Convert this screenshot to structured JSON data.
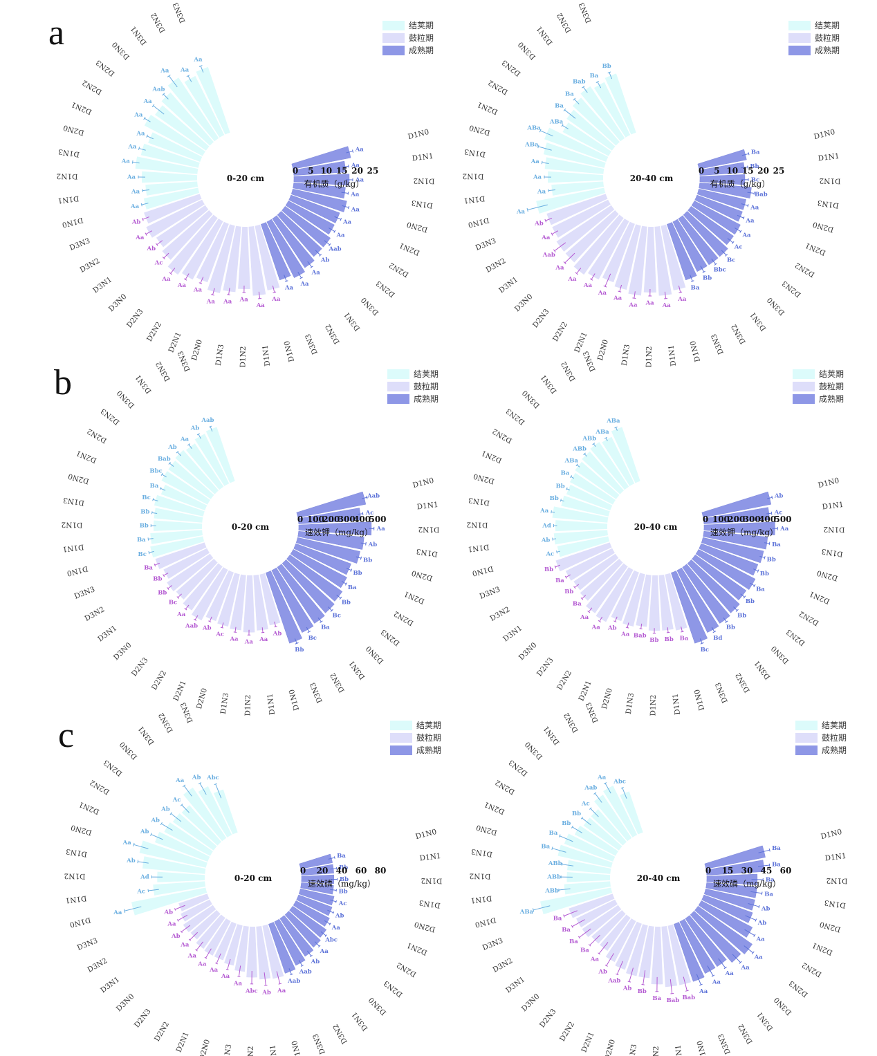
{
  "legend": [
    {
      "name": "结荚期",
      "color": "#dcfbfb"
    },
    {
      "name": "鼓粒期",
      "color": "#dedefa"
    },
    {
      "name": "成熟期",
      "color": "#8e97e6"
    }
  ],
  "stage_label_colors": [
    "#6aaee0",
    "#b45ad2",
    "#5c72d8"
  ],
  "panel_labels": [
    "a",
    "b",
    "c"
  ],
  "categories": [
    "D1N0",
    "D1N1",
    "D1N2",
    "D1N3",
    "D2N0",
    "D2N1",
    "D2N2",
    "D2N3",
    "D3N0",
    "D3N1",
    "D3N2",
    "D3N3"
  ],
  "chart_data": [
    {
      "type": "radial-bar",
      "panel": "a",
      "center_label": "0-20 cm",
      "ticks": [
        "0",
        "5",
        "10",
        "15",
        "20",
        "25"
      ],
      "axis_title": "有机质（g/kg）",
      "ylim": [
        0,
        25
      ],
      "series": [
        {
          "name": "结荚期",
          "values": [
            16,
            15,
            16,
            18,
            17,
            16,
            19,
            18,
            19,
            21,
            19,
            20
          ],
          "errors": [
            1,
            1,
            1,
            1,
            1,
            1,
            1,
            2,
            1,
            2,
            1,
            1
          ],
          "labels": [
            "Aa",
            "Aa",
            "Aa",
            "Aa",
            "Aa",
            "Aa",
            "Aa",
            "Aa",
            "Aab",
            "Aa",
            "Aa",
            "Aa"
          ]
        },
        {
          "name": "鼓粒期",
          "values": [
            19,
            20,
            18,
            19,
            20,
            18,
            19,
            20,
            18,
            17,
            18,
            17
          ],
          "errors": [
            1,
            1,
            1,
            1,
            1,
            1,
            1,
            1,
            1,
            1,
            1,
            1
          ],
          "labels": [
            "Aa",
            "Aa",
            "Aa",
            "Aa",
            "Aa",
            "Aa",
            "Aa",
            "Aa",
            "Ac",
            "Ab",
            "Aa",
            "Ab"
          ]
        },
        {
          "name": "成熟期",
          "values": [
            17,
            15,
            16,
            15,
            16,
            15,
            15,
            16,
            16,
            17,
            18,
            17
          ],
          "errors": [
            1,
            1,
            1,
            1,
            1,
            1,
            1,
            1,
            1,
            1,
            1,
            1
          ],
          "labels": [
            "Aa",
            "Aa",
            "Aa",
            "Aa",
            "Aa",
            "Aa",
            "Aa",
            "Aab",
            "Ab",
            "Aa",
            "Aa",
            "Aa"
          ]
        }
      ]
    },
    {
      "type": "radial-bar",
      "panel": "a",
      "center_label": "20-40 cm",
      "ticks": [
        "0",
        "5",
        "10",
        "15",
        "20",
        "25"
      ],
      "axis_title": "有机质（g/kg）",
      "ylim": [
        0,
        25
      ],
      "series": [
        {
          "name": "结荚期",
          "values": [
            20,
            15,
            16,
            17,
            18,
            19,
            15,
            16,
            17,
            18,
            17,
            18
          ],
          "errors": [
            3,
            1,
            1,
            1,
            2,
            2,
            1,
            2,
            1,
            1,
            1,
            1
          ],
          "labels": [
            "Aa",
            "Aa",
            "Aa",
            "Aa",
            "ABa",
            "ABa",
            "ABa",
            "Ba",
            "Ba",
            "Bab",
            "Ba",
            "Bb"
          ]
        },
        {
          "name": "鼓粒期",
          "values": [
            19,
            20,
            19,
            20,
            19,
            18,
            19,
            20,
            19,
            19,
            18,
            18
          ],
          "errors": [
            1,
            1,
            1,
            1,
            1,
            2,
            1,
            1,
            2,
            2,
            1,
            1
          ],
          "labels": [
            "Aa",
            "Aa",
            "Aa",
            "Aa",
            "Aa",
            "Aa",
            "Aa",
            "Aa",
            "Aa",
            "Aab",
            "Aa",
            "Ab"
          ]
        },
        {
          "name": "成熟期",
          "values": [
            14,
            13,
            13,
            15,
            14,
            14,
            15,
            15,
            16,
            16,
            16,
            17
          ],
          "errors": [
            1,
            1,
            1,
            1,
            1,
            1,
            1,
            1,
            1,
            1,
            1,
            1
          ],
          "labels": [
            "Ba",
            "Bb",
            "Bc",
            "Bab",
            "Aa",
            "Aa",
            "Aa",
            "Ac",
            "Bc",
            "Bbc",
            "Bb",
            "Ba"
          ]
        }
      ]
    },
    {
      "type": "radial-bar",
      "panel": "b",
      "center_label": "0-20 cm",
      "ticks": [
        "0",
        "100",
        "200",
        "300",
        "400",
        "500"
      ],
      "axis_title": "速效钾（mg/kg）",
      "ylim": [
        0,
        500
      ],
      "series": [
        {
          "name": "结荚期",
          "values": [
            310,
            300,
            280,
            280,
            290,
            270,
            300,
            300,
            310,
            300,
            320,
            330
          ],
          "errors": [
            15,
            15,
            15,
            15,
            15,
            15,
            15,
            15,
            15,
            15,
            15,
            15
          ],
          "labels": [
            "Bc",
            "Ba",
            "Bb",
            "Bb",
            "Bc",
            "Ba",
            "Bbc",
            "Bab",
            "Ab",
            "Aa",
            "Ab",
            "Aab"
          ]
        },
        {
          "name": "鼓粒期",
          "values": [
            300,
            320,
            330,
            320,
            310,
            300,
            330,
            310,
            290,
            300,
            280,
            300
          ],
          "errors": [
            15,
            15,
            15,
            15,
            15,
            15,
            15,
            15,
            15,
            15,
            15,
            15
          ],
          "labels": [
            "Ab",
            "Aa",
            "Aa",
            "Aa",
            "Ac",
            "Ab",
            "Aab",
            "Aa",
            "Bc",
            "Bb",
            "Bb",
            "Ba"
          ]
        },
        {
          "name": "成熟期",
          "values": [
            400,
            360,
            420,
            380,
            370,
            340,
            350,
            370,
            380,
            390,
            400,
            430
          ],
          "errors": [
            15,
            15,
            15,
            15,
            15,
            15,
            15,
            15,
            15,
            15,
            15,
            15
          ],
          "labels": [
            "Aab",
            "Ac",
            "Aa",
            "Ab",
            "Bb",
            "Bb",
            "Ba",
            "Bb",
            "Bc",
            "Ba",
            "Bc",
            "Bb"
          ]
        }
      ]
    },
    {
      "type": "radial-bar",
      "panel": "b",
      "center_label": "20-40 cm",
      "ticks": [
        "0",
        "100",
        "200",
        "300",
        "400",
        "500"
      ],
      "axis_title": "速效钾（mg/kg）",
      "ylim": [
        0,
        500
      ],
      "series": [
        {
          "name": "结荚期",
          "values": [
            300,
            310,
            300,
            320,
            280,
            270,
            280,
            290,
            300,
            310,
            300,
            330
          ],
          "errors": [
            10,
            10,
            10,
            10,
            10,
            10,
            10,
            10,
            10,
            10,
            10,
            10
          ],
          "labels": [
            "Ac",
            "Ab",
            "Ad",
            "Aa",
            "Bb",
            "Bb",
            "Ba",
            "ABa",
            "ABb",
            "ABb",
            "ABa",
            "ABa"
          ]
        },
        {
          "name": "鼓粒期",
          "values": [
            330,
            320,
            320,
            300,
            310,
            300,
            340,
            330,
            300,
            290,
            300,
            330
          ],
          "errors": [
            15,
            15,
            15,
            15,
            15,
            15,
            15,
            15,
            15,
            15,
            15,
            15
          ],
          "labels": [
            "Ba",
            "Bb",
            "Bb",
            "Bab",
            "Aa",
            "Ab",
            "Aa",
            "Aa",
            "Ba",
            "Bb",
            "Ba",
            "Bb"
          ]
        },
        {
          "name": "成熟期",
          "values": [
            400,
            380,
            410,
            370,
            360,
            350,
            370,
            360,
            380,
            390,
            400,
            430
          ],
          "errors": [
            15,
            15,
            15,
            15,
            15,
            15,
            15,
            15,
            15,
            15,
            15,
            15
          ],
          "labels": [
            "Ab",
            "Ac",
            "Aa",
            "Ba",
            "Bb",
            "Bb",
            "Ba",
            "Bb",
            "Bb",
            "Bb",
            "Bd",
            "Bc"
          ]
        }
      ]
    },
    {
      "type": "radial-bar",
      "panel": "c",
      "center_label": "0-20 cm",
      "ticks": [
        "0",
        "20",
        "40",
        "60",
        "80"
      ],
      "axis_title": "速效磷（mg/kg）",
      "ylim": [
        0,
        80
      ],
      "series": [
        {
          "name": "结荚期",
          "values": [
            70,
            48,
            44,
            58,
            63,
            52,
            48,
            46,
            45,
            56,
            50,
            42
          ],
          "errors": [
            8,
            5,
            5,
            5,
            7,
            6,
            6,
            6,
            5,
            6,
            6,
            7
          ],
          "labels": [
            "Aa",
            "Ac",
            "Ad",
            "Ab",
            "Aa",
            "Ab",
            "Ab",
            "Ab",
            "Ac",
            "Aa",
            "Ab",
            "Abc"
          ]
        },
        {
          "name": "鼓粒期",
          "values": [
            50,
            49,
            47,
            42,
            38,
            36,
            36,
            35,
            32,
            33,
            30,
            28
          ],
          "errors": [
            6,
            6,
            6,
            5,
            5,
            5,
            5,
            5,
            5,
            5,
            5,
            5
          ],
          "labels": [
            "Aa",
            "Ab",
            "Abc",
            "Aa",
            "Aa",
            "Aa",
            "Aa",
            "Aa",
            "Aa",
            "Ab",
            "Aa",
            "Ab"
          ]
        },
        {
          "name": "成熟期",
          "values": [
            30,
            30,
            30,
            30,
            32,
            33,
            35,
            38,
            40,
            42,
            45,
            48
          ],
          "errors": [
            3,
            3,
            3,
            3,
            3,
            3,
            3,
            3,
            3,
            3,
            3,
            3
          ],
          "labels": [
            "Ba",
            "Bb",
            "Bb",
            "Bb",
            "Ac",
            "Ab",
            "Aa",
            "Abc",
            "Aa",
            "Ab",
            "Aab",
            "Aab"
          ]
        }
      ]
    },
    {
      "type": "radial-bar",
      "panel": "c",
      "center_label": "20-40 cm",
      "ticks": [
        "0",
        "15",
        "30",
        "45",
        "60"
      ],
      "axis_title": "速效磷（mg/kg）",
      "ylim": [
        0,
        60
      ],
      "series": [
        {
          "name": "结荚期",
          "values": [
            50,
            32,
            30,
            30,
            38,
            36,
            32,
            30,
            30,
            36,
            38,
            30
          ],
          "errors": [
            6,
            4,
            4,
            4,
            5,
            5,
            4,
            4,
            4,
            4,
            4,
            4
          ],
          "labels": [
            "ABa",
            "ABb",
            "ABb",
            "ABb",
            "Ba",
            "Ba",
            "Bb",
            "Bb",
            "Ac",
            "Aab",
            "Aa",
            "Abc"
          ]
        },
        {
          "name": "鼓粒期",
          "values": [
            42,
            42,
            40,
            36,
            36,
            34,
            32,
            28,
            28,
            30,
            30,
            32
          ],
          "errors": [
            5,
            5,
            5,
            5,
            5,
            5,
            5,
            5,
            5,
            5,
            5,
            5
          ],
          "labels": [
            "Bab",
            "Bab",
            "Ba",
            "Bb",
            "Ab",
            "Aab",
            "Ab",
            "Aa",
            "Ba",
            "Ba",
            "Ba",
            "Ba"
          ]
        },
        {
          "name": "成熟期",
          "values": [
            42,
            40,
            35,
            35,
            35,
            36,
            40,
            46,
            44,
            40,
            40,
            42
          ],
          "errors": [
            4,
            4,
            4,
            4,
            4,
            4,
            4,
            4,
            4,
            4,
            4,
            4
          ],
          "labels": [
            "Ba",
            "Ba",
            "Ba",
            "Ba",
            "Ab",
            "Ab",
            "Aa",
            "Aa",
            "Aa",
            "Aa",
            "Aa",
            "Aa"
          ]
        }
      ]
    }
  ]
}
